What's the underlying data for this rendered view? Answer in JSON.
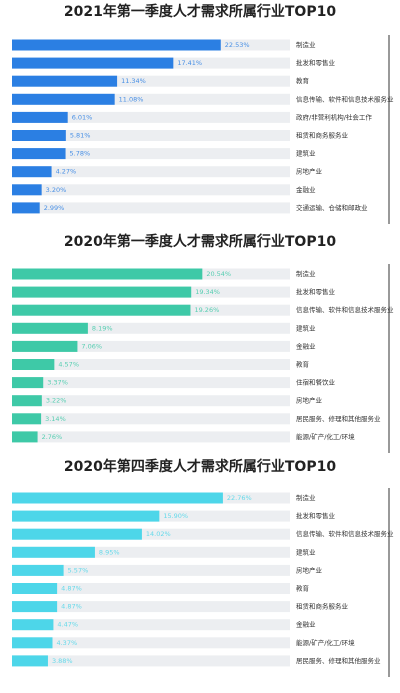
{
  "chart_data": [
    {
      "type": "bar",
      "orientation": "horizontal",
      "title": "2021年第一季度人才需求所属行业TOP10",
      "categories": [
        "制造业",
        "批发和零售业",
        "教育",
        "信息传输、软件和信息技术服务业",
        "政府/非营利机构/社会工作",
        "租赁和商务服务业",
        "建筑业",
        "房地产业",
        "金融业",
        "交通运输、仓储和邮政业"
      ],
      "values": [
        22.53,
        17.41,
        11.34,
        11.08,
        6.01,
        5.81,
        5.78,
        4.27,
        3.2,
        2.99
      ],
      "value_labels": [
        "22.53%",
        "17.41%",
        "11.34%",
        "11.08%",
        "6.01%",
        "5.81%",
        "5.78%",
        "4.27%",
        "3.20%",
        "2.99%"
      ],
      "color": "#2b7fe3",
      "xlim": [
        0,
        30
      ]
    },
    {
      "type": "bar",
      "orientation": "horizontal",
      "title": "2020年第一季度人才需求所属行业TOP10",
      "categories": [
        "制造业",
        "批发和零售业",
        "信息传输、软件和信息技术服务业",
        "建筑业",
        "金融业",
        "教育",
        "住宿和餐饮业",
        "房地产业",
        "居民服务、修理和其他服务业",
        "能源/矿产/化工/环境"
      ],
      "values": [
        20.54,
        19.34,
        19.26,
        8.19,
        7.06,
        4.57,
        3.37,
        3.22,
        3.14,
        2.76
      ],
      "value_labels": [
        "20.54%",
        "19.34%",
        "19.26%",
        "8.19%",
        "7.06%",
        "4.57%",
        "3.37%",
        "3.22%",
        "3.14%",
        "2.76%"
      ],
      "color": "#3ec9a7",
      "xlim": [
        0,
        30
      ]
    },
    {
      "type": "bar",
      "orientation": "horizontal",
      "title": "2020年第四季度人才需求所属行业TOP10",
      "categories": [
        "制造业",
        "批发和零售业",
        "信息传输、软件和信息技术服务业",
        "建筑业",
        "房地产业",
        "教育",
        "租赁和商务服务业",
        "金融业",
        "能源/矿产/化工/环境",
        "居民服务、修理和其他服务业"
      ],
      "values": [
        22.76,
        15.9,
        14.02,
        8.95,
        5.57,
        4.87,
        4.87,
        4.47,
        4.37,
        3.88
      ],
      "value_labels": [
        "22.76%",
        "15.90%",
        "14.02%",
        "8.95%",
        "5.57%",
        "4.87%",
        "4.87%",
        "4.47%",
        "4.37%",
        "3.88%"
      ],
      "color": "#4dd6e9",
      "xlim": [
        0,
        30
      ]
    }
  ]
}
